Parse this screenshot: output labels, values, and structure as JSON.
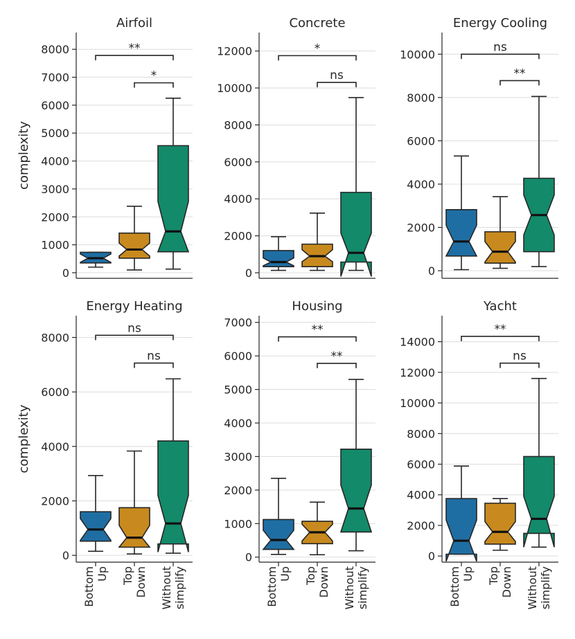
{
  "figure": {
    "ylabel": "complexity",
    "categories": [
      {
        "line1": "Bottom",
        "line2": "Up"
      },
      {
        "line1": "Top",
        "line2": "Down"
      },
      {
        "line1": "Without",
        "line2": "simplify"
      }
    ],
    "colors": [
      "#1f6ea3",
      "#c88a1e",
      "#138a6a"
    ]
  },
  "chart_data": [
    {
      "type": "box",
      "title": "Airfoil",
      "ylim": [
        -200,
        8600
      ],
      "yticks": [
        0,
        1000,
        2000,
        3000,
        4000,
        5000,
        6000,
        7000,
        8000
      ],
      "boxes": [
        {
          "category": "Bottom Up",
          "whislo": 200,
          "q1": 350,
          "med": 520,
          "q3": 730,
          "whishi": 730,
          "notch_lo": 370,
          "notch_hi": 670
        },
        {
          "category": "Top Down",
          "whislo": 100,
          "q1": 520,
          "med": 830,
          "q3": 1420,
          "whishi": 2380,
          "notch_lo": 600,
          "notch_hi": 1060
        },
        {
          "category": "Without simplify",
          "whislo": 130,
          "q1": 750,
          "med": 1480,
          "q3": 4550,
          "whishi": 6250,
          "notch_lo": 750,
          "notch_hi": 2550
        }
      ],
      "comparisons": [
        {
          "from": 0,
          "to": 2,
          "label": "**",
          "y": 7780
        },
        {
          "from": 1,
          "to": 2,
          "label": "*",
          "y": 6800
        }
      ]
    },
    {
      "type": "box",
      "title": "Concrete",
      "ylim": [
        -300,
        13000
      ],
      "yticks": [
        0,
        2000,
        4000,
        6000,
        8000,
        10000,
        12000
      ],
      "boxes": [
        {
          "category": "Bottom Up",
          "whislo": 130,
          "q1": 330,
          "med": 580,
          "q3": 1200,
          "whishi": 1950,
          "notch_lo": 380,
          "notch_hi": 800
        },
        {
          "category": "Top Down",
          "whislo": 130,
          "q1": 330,
          "med": 900,
          "q3": 1550,
          "whishi": 3230,
          "notch_lo": 600,
          "notch_hi": 1250
        },
        {
          "category": "Without simplify",
          "whislo": 130,
          "q1": 580,
          "med": 1080,
          "q3": 4350,
          "whishi": 9480,
          "notch_lo": -200,
          "notch_hi": 2150
        }
      ],
      "comparisons": [
        {
          "from": 0,
          "to": 2,
          "label": "*",
          "y": 11750
        },
        {
          "from": 1,
          "to": 2,
          "label": "ns",
          "y": 10300
        }
      ]
    },
    {
      "type": "box",
      "title": "Energy Cooling",
      "ylim": [
        -350,
        11000
      ],
      "yticks": [
        0,
        2000,
        4000,
        6000,
        8000,
        10000
      ],
      "boxes": [
        {
          "category": "Bottom Up",
          "whislo": 50,
          "q1": 680,
          "med": 1350,
          "q3": 2820,
          "whishi": 5300,
          "notch_lo": 680,
          "notch_hi": 2100
        },
        {
          "category": "Top Down",
          "whislo": 110,
          "q1": 350,
          "med": 880,
          "q3": 1800,
          "whishi": 3420,
          "notch_lo": 400,
          "notch_hi": 1350
        },
        {
          "category": "Without simplify",
          "whislo": 190,
          "q1": 880,
          "med": 2570,
          "q3": 4270,
          "whishi": 8050,
          "notch_lo": 1650,
          "notch_hi": 3500
        }
      ],
      "comparisons": [
        {
          "from": 0,
          "to": 2,
          "label": "ns",
          "y": 10000
        },
        {
          "from": 1,
          "to": 2,
          "label": "**",
          "y": 8780
        }
      ]
    },
    {
      "type": "box",
      "title": "Energy Heating",
      "ylim": [
        -250,
        8800
      ],
      "yticks": [
        0,
        2000,
        4000,
        6000,
        8000
      ],
      "boxes": [
        {
          "category": "Bottom Up",
          "whislo": 150,
          "q1": 520,
          "med": 950,
          "q3": 1600,
          "whishi": 2930,
          "notch_lo": 550,
          "notch_hi": 1350
        },
        {
          "category": "Top Down",
          "whislo": 50,
          "q1": 300,
          "med": 650,
          "q3": 1750,
          "whishi": 3830,
          "notch_lo": 300,
          "notch_hi": 1100
        },
        {
          "category": "Without simplify",
          "whislo": 80,
          "q1": 420,
          "med": 1170,
          "q3": 4200,
          "whishi": 6480,
          "notch_lo": 120,
          "notch_hi": 2200
        }
      ],
      "comparisons": [
        {
          "from": 0,
          "to": 2,
          "label": "ns",
          "y": 8080
        },
        {
          "from": 1,
          "to": 2,
          "label": "ns",
          "y": 7060
        }
      ]
    },
    {
      "type": "box",
      "title": "Housing",
      "ylim": [
        -150,
        7200
      ],
      "yticks": [
        0,
        1000,
        2000,
        3000,
        4000,
        5000,
        6000,
        7000
      ],
      "boxes": [
        {
          "category": "Bottom Up",
          "whislo": 80,
          "q1": 230,
          "med": 510,
          "q3": 1120,
          "whishi": 2350,
          "notch_lo": 230,
          "notch_hi": 800
        },
        {
          "category": "Top Down",
          "whislo": 70,
          "q1": 400,
          "med": 740,
          "q3": 1070,
          "whishi": 1640,
          "notch_lo": 480,
          "notch_hi": 980
        },
        {
          "category": "Without simplify",
          "whislo": 190,
          "q1": 750,
          "med": 1450,
          "q3": 3220,
          "whishi": 5300,
          "notch_lo": 750,
          "notch_hi": 2150
        }
      ],
      "comparisons": [
        {
          "from": 0,
          "to": 2,
          "label": "**",
          "y": 6570
        },
        {
          "from": 1,
          "to": 2,
          "label": "**",
          "y": 5780
        }
      ]
    },
    {
      "type": "box",
      "title": "Yacht",
      "ylim": [
        -400,
        15700
      ],
      "yticks": [
        0,
        2000,
        4000,
        6000,
        8000,
        10000,
        12000,
        14000
      ],
      "boxes": [
        {
          "category": "Bottom Up",
          "whislo": 120,
          "q1": 120,
          "med": 1000,
          "q3": 3750,
          "whishi": 5880,
          "notch_lo": -350,
          "notch_hi": 2350
        },
        {
          "category": "Top Down",
          "whislo": 380,
          "q1": 780,
          "med": 1580,
          "q3": 3450,
          "whishi": 3750,
          "notch_lo": 950,
          "notch_hi": 2250
        },
        {
          "category": "Without simplify",
          "whislo": 580,
          "q1": 1480,
          "med": 2430,
          "q3": 6500,
          "whishi": 11600,
          "notch_lo": 580,
          "notch_hi": 3900
        }
      ],
      "comparisons": [
        {
          "from": 0,
          "to": 2,
          "label": "**",
          "y": 14350
        },
        {
          "from": 1,
          "to": 2,
          "label": "ns",
          "y": 12600
        }
      ]
    }
  ]
}
